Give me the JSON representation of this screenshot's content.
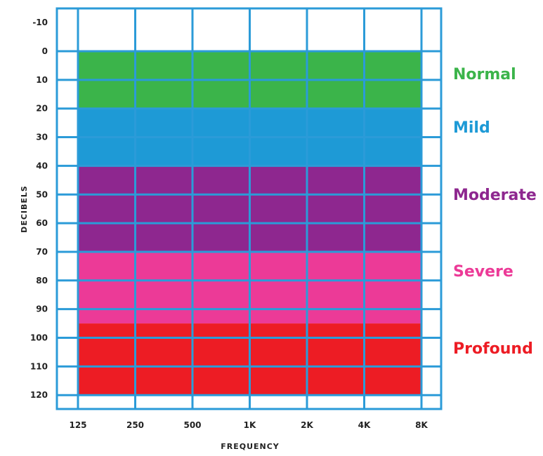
{
  "chart_data": {
    "type": "area",
    "title": "",
    "xlabel": "FREQUENCY",
    "ylabel": "DECIBELS",
    "x_ticks": [
      "125",
      "250",
      "500",
      "1K",
      "2K",
      "4K",
      "8K"
    ],
    "y_ticks": [
      "-10",
      "0",
      "10",
      "20",
      "30",
      "40",
      "50",
      "60",
      "70",
      "80",
      "90",
      "100",
      "110",
      "120"
    ],
    "ylim": [
      -10,
      120
    ],
    "y_inverted": true,
    "grid": true,
    "bands": [
      {
        "name": "Normal",
        "from": 0,
        "to": 20,
        "color": "#3bb44a"
      },
      {
        "name": "Mild",
        "from": 20,
        "to": 40,
        "color": "#1e9ad6"
      },
      {
        "name": "Moderate",
        "from": 40,
        "to": 70,
        "color": "#8e278f"
      },
      {
        "name": "Severe",
        "from": 70,
        "to": 95,
        "color": "#ec3a97"
      },
      {
        "name": "Profound",
        "from": 95,
        "to": 120,
        "color": "#ed1c24"
      }
    ],
    "grid_color": "#2b9bd8"
  }
}
